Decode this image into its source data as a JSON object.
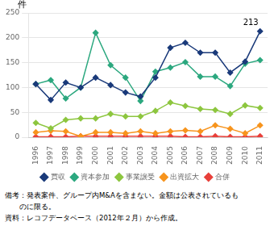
{
  "chart_data": {
    "type": "line",
    "categories": [
      "1996",
      "1997",
      "1998",
      "1999",
      "2000",
      "2001",
      "2002",
      "2003",
      "2004",
      "2005",
      "2006",
      "2007",
      "2008",
      "2009",
      "2010",
      "2011"
    ],
    "series": [
      {
        "name": "買収",
        "color": "#1a3a7a",
        "values": [
          107,
          75,
          110,
          100,
          120,
          105,
          90,
          82,
          120,
          180,
          190,
          170,
          170,
          130,
          152,
          213
        ]
      },
      {
        "name": "資本参加",
        "color": "#2ca87f",
        "values": [
          107,
          115,
          78,
          100,
          210,
          145,
          120,
          73,
          132,
          140,
          151,
          122,
          122,
          103,
          148,
          155
        ]
      },
      {
        "name": "事業譲受",
        "color": "#8dc63f",
        "values": [
          29,
          18,
          35,
          38,
          38,
          47,
          42,
          42,
          53,
          70,
          63,
          57,
          55,
          47,
          64,
          59
        ]
      },
      {
        "name": "出資拡大",
        "color": "#f7941d",
        "values": [
          10,
          13,
          12,
          2,
          10,
          10,
          8,
          12,
          8,
          12,
          14,
          12,
          24,
          17,
          8,
          24
        ]
      },
      {
        "name": "合併",
        "color": "#e8403a",
        "values": [
          1,
          1,
          1,
          2,
          2,
          2,
          2,
          2,
          2,
          2,
          1,
          1,
          2,
          1,
          1,
          2
        ]
      }
    ],
    "y_label": "件",
    "ylim": [
      0,
      250
    ],
    "yticks": [
      0,
      50,
      100,
      150,
      200,
      250
    ],
    "annotations": [
      {
        "text": "213",
        "x": "2011",
        "y": 213
      }
    ],
    "notes": [
      "備考：発表案件、グループ内M&Aを含まない。金額は公表されているも",
      "　　のに限る。",
      "資料：レコフデータベース（2012年２月）から作成。"
    ],
    "marker": "diamond",
    "grid": true,
    "legend": "bottom"
  }
}
